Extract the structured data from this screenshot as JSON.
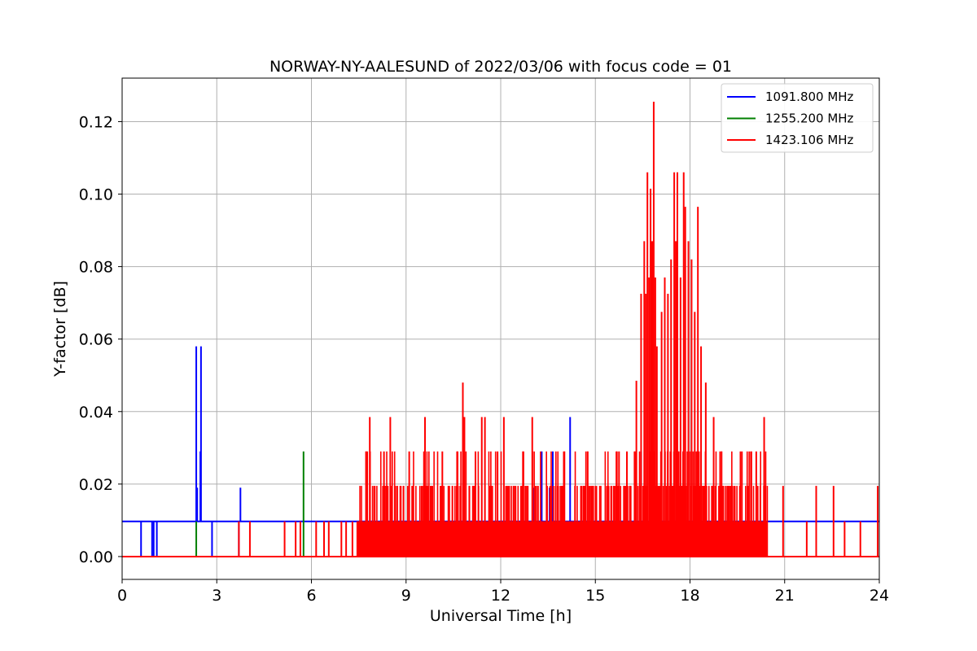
{
  "chart_data": {
    "type": "line",
    "title": "NORWAY-NY-AALESUND of 2022/03/06 with focus code = 01",
    "xlabel": "Universal Time [h]",
    "ylabel": "Y-factor [dB]",
    "xlim": [
      0,
      24
    ],
    "ylim": [
      -0.0063,
      0.132
    ],
    "xticks": [
      0,
      3,
      6,
      9,
      12,
      15,
      18,
      21,
      24
    ],
    "xtick_labels": [
      "0",
      "3",
      "6",
      "9",
      "12",
      "15",
      "18",
      "21",
      "24"
    ],
    "yticks": [
      0.0,
      0.02,
      0.04,
      0.06,
      0.08,
      0.1,
      0.12
    ],
    "ytick_labels": [
      "0.00",
      "0.02",
      "0.04",
      "0.06",
      "0.08",
      "0.10",
      "0.12"
    ],
    "grid": true,
    "legend_position": "top-right",
    "series": [
      {
        "name": "1091.800 MHz",
        "color": "#0000ff",
        "baseline": 0.0097,
        "spikes": [
          {
            "x": 0.6,
            "y": 0.0
          },
          {
            "x": 0.95,
            "y": 0.0
          },
          {
            "x": 1.0,
            "y": 0.0
          },
          {
            "x": 1.1,
            "y": 0.0
          },
          {
            "x": 2.35,
            "y": 0.058
          },
          {
            "x": 2.38,
            "y": 0.019
          },
          {
            "x": 2.5,
            "y": 0.058
          },
          {
            "x": 2.48,
            "y": 0.029
          },
          {
            "x": 2.85,
            "y": 0.0
          },
          {
            "x": 3.75,
            "y": 0.019
          },
          {
            "x": 3.7,
            "y": 0.0
          },
          {
            "x": 13.05,
            "y": 0.019
          },
          {
            "x": 13.3,
            "y": 0.029
          },
          {
            "x": 13.65,
            "y": 0.029
          },
          {
            "x": 13.55,
            "y": 0.019
          },
          {
            "x": 14.2,
            "y": 0.0385
          },
          {
            "x": 16.45,
            "y": 0.029
          }
        ]
      },
      {
        "name": "1255.200 MHz",
        "color": "#008000",
        "baseline": 0.0,
        "spikes": [
          {
            "x": 2.35,
            "y": 0.0097
          },
          {
            "x": 5.75,
            "y": 0.029
          },
          {
            "x": 16.55,
            "y": 0.0097
          },
          {
            "x": 16.65,
            "y": 0.0097
          },
          {
            "x": 16.75,
            "y": 0.019
          },
          {
            "x": 16.85,
            "y": 0.0097
          },
          {
            "x": 17.5,
            "y": 0.0097
          },
          {
            "x": 17.6,
            "y": 0.019
          },
          {
            "x": 17.75,
            "y": 0.0097
          },
          {
            "x": 17.85,
            "y": 0.0097
          }
        ]
      },
      {
        "name": "1423.106 MHz",
        "color": "#ff0000",
        "baseline": 0.0,
        "dense_intervals": [
          [
            7.45,
            20.45
          ],
          [
            16.4,
            18.3
          ]
        ],
        "spikes": [
          {
            "x": 3.7,
            "y": 0.0097
          },
          {
            "x": 4.05,
            "y": 0.0097
          },
          {
            "x": 5.15,
            "y": 0.0097
          },
          {
            "x": 5.5,
            "y": 0.0097
          },
          {
            "x": 5.65,
            "y": 0.0097
          },
          {
            "x": 6.15,
            "y": 0.0097
          },
          {
            "x": 6.4,
            "y": 0.0097
          },
          {
            "x": 6.55,
            "y": 0.0097
          },
          {
            "x": 6.95,
            "y": 0.0097
          },
          {
            "x": 7.1,
            "y": 0.0097
          },
          {
            "x": 7.3,
            "y": 0.0097
          },
          {
            "x": 7.85,
            "y": 0.0385
          },
          {
            "x": 8.5,
            "y": 0.0385
          },
          {
            "x": 9.6,
            "y": 0.0385
          },
          {
            "x": 10.8,
            "y": 0.048
          },
          {
            "x": 10.85,
            "y": 0.0385
          },
          {
            "x": 11.4,
            "y": 0.0385
          },
          {
            "x": 11.5,
            "y": 0.0385
          },
          {
            "x": 12.1,
            "y": 0.0385
          },
          {
            "x": 13.0,
            "y": 0.0385
          },
          {
            "x": 8.3,
            "y": 0.029
          },
          {
            "x": 9.1,
            "y": 0.029
          },
          {
            "x": 10.15,
            "y": 0.029
          },
          {
            "x": 11.2,
            "y": 0.029
          },
          {
            "x": 11.9,
            "y": 0.029
          },
          {
            "x": 14.0,
            "y": 0.029
          },
          {
            "x": 15.5,
            "y": 0.0195
          },
          {
            "x": 15.75,
            "y": 0.029
          },
          {
            "x": 16.0,
            "y": 0.029
          },
          {
            "x": 16.3,
            "y": 0.0485
          },
          {
            "x": 16.45,
            "y": 0.0725
          },
          {
            "x": 16.55,
            "y": 0.087
          },
          {
            "x": 16.6,
            "y": 0.0725
          },
          {
            "x": 16.65,
            "y": 0.106
          },
          {
            "x": 16.7,
            "y": 0.077
          },
          {
            "x": 16.75,
            "y": 0.1015
          },
          {
            "x": 16.8,
            "y": 0.087
          },
          {
            "x": 16.85,
            "y": 0.1255
          },
          {
            "x": 16.9,
            "y": 0.077
          },
          {
            "x": 16.95,
            "y": 0.058
          },
          {
            "x": 17.1,
            "y": 0.0675
          },
          {
            "x": 17.2,
            "y": 0.077
          },
          {
            "x": 17.3,
            "y": 0.0725
          },
          {
            "x": 17.4,
            "y": 0.082
          },
          {
            "x": 17.5,
            "y": 0.106
          },
          {
            "x": 17.55,
            "y": 0.087
          },
          {
            "x": 17.6,
            "y": 0.106
          },
          {
            "x": 17.7,
            "y": 0.077
          },
          {
            "x": 17.8,
            "y": 0.106
          },
          {
            "x": 17.85,
            "y": 0.0965
          },
          {
            "x": 17.95,
            "y": 0.087
          },
          {
            "x": 18.05,
            "y": 0.082
          },
          {
            "x": 18.15,
            "y": 0.0675
          },
          {
            "x": 18.25,
            "y": 0.0965
          },
          {
            "x": 18.35,
            "y": 0.058
          },
          {
            "x": 18.5,
            "y": 0.048
          },
          {
            "x": 18.75,
            "y": 0.0385
          },
          {
            "x": 19.0,
            "y": 0.029
          },
          {
            "x": 19.6,
            "y": 0.029
          },
          {
            "x": 20.1,
            "y": 0.029
          },
          {
            "x": 20.35,
            "y": 0.0385
          },
          {
            "x": 20.95,
            "y": 0.0195
          },
          {
            "x": 21.7,
            "y": 0.0097
          },
          {
            "x": 22.0,
            "y": 0.0195
          },
          {
            "x": 22.55,
            "y": 0.0195
          },
          {
            "x": 22.9,
            "y": 0.0097
          },
          {
            "x": 23.4,
            "y": 0.0097
          },
          {
            "x": 23.95,
            "y": 0.0195
          }
        ]
      }
    ]
  }
}
